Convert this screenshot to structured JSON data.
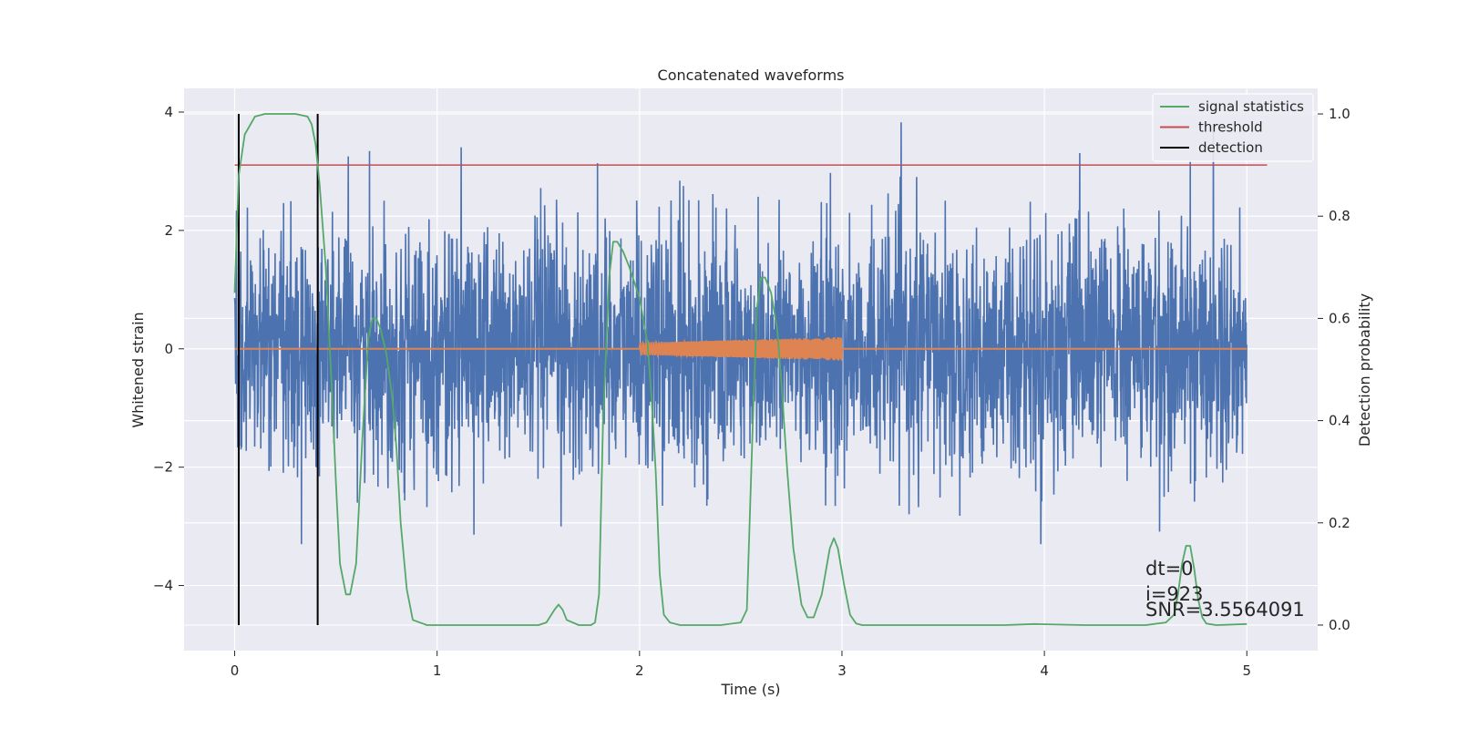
{
  "chart_data": {
    "type": "line",
    "title": "Concatenated waveforms",
    "xlabel": "Time (s)",
    "ylabel": "Whitened strain",
    "y2label": "Detection probability",
    "xlim": [
      -0.25,
      5.35
    ],
    "ylim": [
      -5.1,
      4.4
    ],
    "y2lim": [
      -0.05,
      1.05
    ],
    "xticks": [
      0,
      1,
      2,
      3,
      4,
      5
    ],
    "yticks": [
      -4,
      -2,
      0,
      2,
      4
    ],
    "y2ticks": [
      0.0,
      0.2,
      0.4,
      0.6,
      0.8,
      1.0
    ],
    "xtick_labels": [
      "0",
      "1",
      "2",
      "3",
      "4",
      "5"
    ],
    "ytick_labels": [
      "−4",
      "−2",
      "0",
      "2",
      "4"
    ],
    "y2tick_labels": [
      "0.0",
      "0.2",
      "0.4",
      "0.6",
      "0.8",
      "1.0"
    ],
    "grid": true,
    "legend_position": "top-right",
    "series": [
      {
        "name": "",
        "axis": "left",
        "color": "#4c72b0",
        "kind": "noise",
        "x_range": [
          0,
          5
        ],
        "sample_spacing": 0.0015,
        "std": 1.0,
        "range": [
          -3.3,
          3.95
        ]
      },
      {
        "name": "",
        "axis": "left",
        "color": "#dd8452",
        "kind": "chirp",
        "x_range": [
          0,
          5
        ],
        "chirp_interval": [
          2.0,
          3.0
        ],
        "amplitude": [
          0.1,
          0.2
        ]
      },
      {
        "name": "signal statistics",
        "axis": "right",
        "color": "#55a868",
        "x": [
          0,
          0.02,
          0.05,
          0.1,
          0.15,
          0.2,
          0.3,
          0.36,
          0.38,
          0.4,
          0.42,
          0.45,
          0.48,
          0.5,
          0.52,
          0.55,
          0.57,
          0.6,
          0.63,
          0.66,
          0.68,
          0.7,
          0.72,
          0.75,
          0.78,
          0.8,
          0.82,
          0.85,
          0.88,
          0.95,
          1.1,
          1.3,
          1.5,
          1.54,
          1.58,
          1.6,
          1.62,
          1.64,
          1.7,
          1.76,
          1.78,
          1.8,
          1.82,
          1.85,
          1.87,
          1.89,
          1.92,
          1.95,
          2.0,
          2.04,
          2.06,
          2.08,
          2.1,
          2.12,
          2.15,
          2.2,
          2.4,
          2.5,
          2.53,
          2.56,
          2.58,
          2.6,
          2.62,
          2.65,
          2.68,
          2.7,
          2.73,
          2.76,
          2.8,
          2.83,
          2.86,
          2.9,
          2.94,
          2.96,
          2.98,
          3.01,
          3.04,
          3.07,
          3.1,
          3.2,
          3.5,
          3.8,
          3.95,
          4.2,
          4.5,
          4.6,
          4.64,
          4.66,
          4.68,
          4.7,
          4.72,
          4.74,
          4.76,
          4.78,
          4.8,
          4.85,
          5.0
        ],
        "y": [
          0.65,
          0.88,
          0.96,
          0.995,
          1.0,
          1.0,
          1.0,
          0.995,
          0.98,
          0.94,
          0.86,
          0.7,
          0.46,
          0.28,
          0.12,
          0.06,
          0.06,
          0.12,
          0.36,
          0.56,
          0.6,
          0.6,
          0.58,
          0.53,
          0.44,
          0.34,
          0.2,
          0.07,
          0.01,
          0.0,
          0.0,
          0.0,
          0.0,
          0.005,
          0.03,
          0.04,
          0.03,
          0.01,
          0.0,
          0.0,
          0.005,
          0.06,
          0.4,
          0.68,
          0.75,
          0.75,
          0.73,
          0.7,
          0.64,
          0.55,
          0.44,
          0.3,
          0.1,
          0.02,
          0.005,
          0.0,
          0.0,
          0.005,
          0.03,
          0.4,
          0.62,
          0.68,
          0.68,
          0.65,
          0.58,
          0.48,
          0.3,
          0.15,
          0.04,
          0.015,
          0.015,
          0.06,
          0.15,
          0.17,
          0.15,
          0.08,
          0.02,
          0.003,
          0.0,
          0.0,
          0.0,
          0.0,
          0.002,
          0.0,
          0.0,
          0.005,
          0.02,
          0.06,
          0.12,
          0.155,
          0.155,
          0.11,
          0.05,
          0.015,
          0.003,
          0.0,
          0.002
        ]
      },
      {
        "name": "threshold",
        "axis": "right",
        "color": "#c44e52",
        "x": [
          0,
          5.1
        ],
        "y": [
          0.9,
          0.9
        ]
      },
      {
        "name": "detection",
        "axis": "right",
        "color": "#000000",
        "vlines": [
          0.02,
          0.41
        ],
        "y_range": [
          0.0,
          1.0
        ]
      }
    ],
    "legend": [
      "signal statistics",
      "threshold",
      "detection"
    ],
    "annotations": [
      "dt=0",
      "i=923",
      "SNR=3.5564091"
    ]
  },
  "colors": {
    "plot_background": "#eaeaf2",
    "grid": "#ffffff",
    "noise": "#4c72b0",
    "waveform": "#dd8452",
    "statistic": "#55a868",
    "threshold": "#c44e52",
    "detection": "#000000"
  }
}
